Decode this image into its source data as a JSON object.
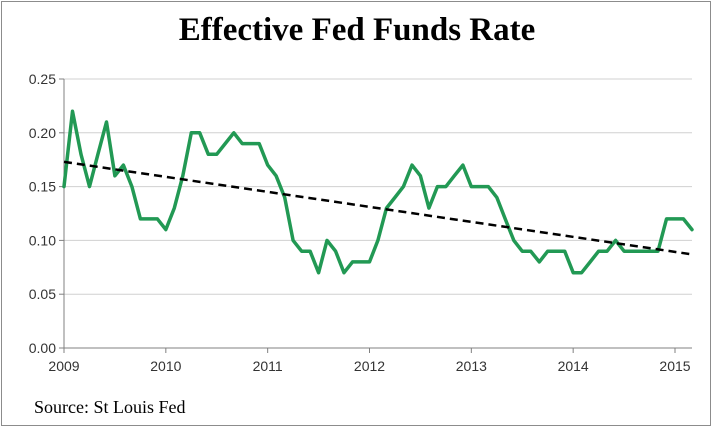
{
  "chart_data": {
    "type": "line",
    "title": "Effective Fed Funds Rate",
    "source_note": "Source: St Louis Fed",
    "xlabel": "",
    "ylabel": "",
    "xlim": [
      2009,
      2015.167
    ],
    "ylim": [
      0,
      0.25
    ],
    "yticks": [
      "0.00",
      "0.05",
      "0.10",
      "0.15",
      "0.20",
      "0.25"
    ],
    "xticks": [
      "2009",
      "2010",
      "2011",
      "2012",
      "2013",
      "2014",
      "2015"
    ],
    "grid": true,
    "legend": "none",
    "colors": {
      "series": "#229954",
      "trend": "#000000",
      "grid": "#d0d0d0",
      "axis": "#808080"
    },
    "series": [
      {
        "x": [
          2009.0,
          2009.083,
          2009.167,
          2009.25,
          2009.333,
          2009.417,
          2009.5,
          2009.583,
          2009.667,
          2009.75,
          2009.833,
          2009.917,
          2010.0,
          2010.083,
          2010.167,
          2010.25,
          2010.333,
          2010.417,
          2010.5,
          2010.583,
          2010.667,
          2010.75,
          2010.833,
          2010.917,
          2011.0,
          2011.083,
          2011.167,
          2011.25,
          2011.333,
          2011.417,
          2011.5,
          2011.583,
          2011.667,
          2011.75,
          2011.833,
          2011.917,
          2012.0,
          2012.083,
          2012.167,
          2012.25,
          2012.333,
          2012.417,
          2012.5,
          2012.583,
          2012.667,
          2012.75,
          2012.833,
          2012.917,
          2013.0,
          2013.083,
          2013.167,
          2013.25,
          2013.333,
          2013.417,
          2013.5,
          2013.583,
          2013.667,
          2013.75,
          2013.833,
          2013.917,
          2014.0,
          2014.083,
          2014.167,
          2014.25,
          2014.333,
          2014.417,
          2014.5,
          2014.583,
          2014.667,
          2014.75,
          2014.833,
          2014.917,
          2015.0,
          2015.083,
          2015.167
        ],
        "values": [
          0.15,
          0.22,
          0.18,
          0.15,
          0.18,
          0.21,
          0.16,
          0.17,
          0.15,
          0.12,
          0.12,
          0.12,
          0.11,
          0.13,
          0.16,
          0.2,
          0.2,
          0.18,
          0.18,
          0.19,
          0.2,
          0.19,
          0.19,
          0.19,
          0.17,
          0.16,
          0.14,
          0.1,
          0.09,
          0.09,
          0.07,
          0.1,
          0.09,
          0.07,
          0.08,
          0.08,
          0.08,
          0.1,
          0.13,
          0.14,
          0.15,
          0.17,
          0.16,
          0.13,
          0.15,
          0.15,
          0.16,
          0.17,
          0.15,
          0.15,
          0.15,
          0.14,
          0.12,
          0.1,
          0.09,
          0.09,
          0.08,
          0.09,
          0.09,
          0.09,
          0.07,
          0.07,
          0.08,
          0.09,
          0.09,
          0.1,
          0.09,
          0.09,
          0.09,
          0.09,
          0.09,
          0.12,
          0.12,
          0.12,
          0.11
        ]
      },
      {
        "type": "trendline",
        "style": "dashed",
        "x": [
          2009.0,
          2015.167
        ],
        "values": [
          0.173,
          0.087
        ]
      }
    ]
  }
}
